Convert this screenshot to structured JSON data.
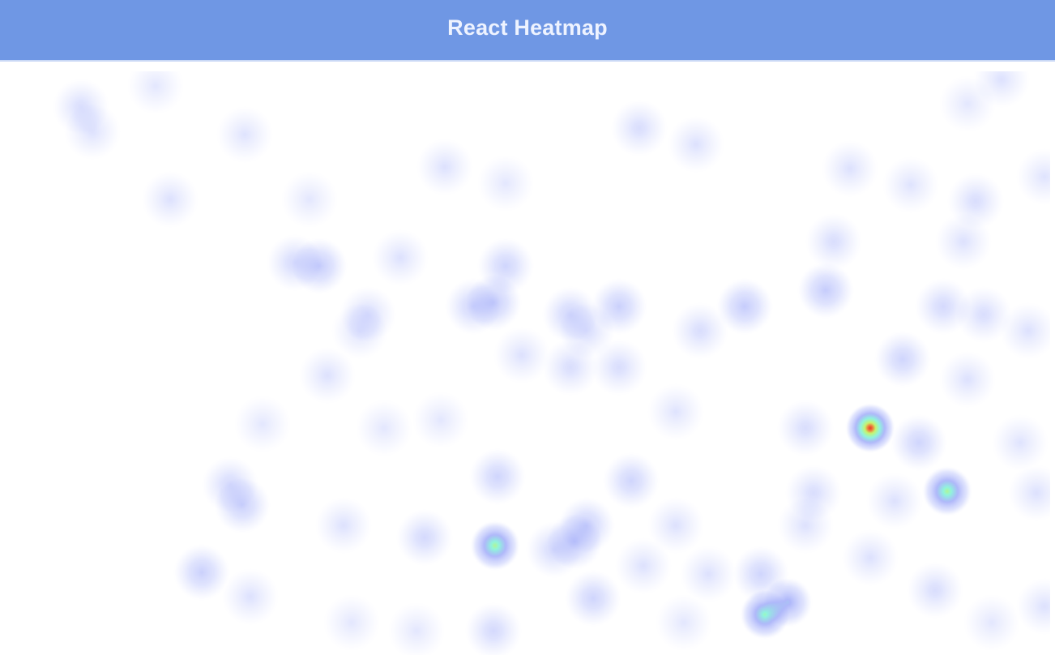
{
  "header": {
    "title": "React Heatmap"
  },
  "heatmap": {
    "gradient": {
      "low": "#8c99f8",
      "mid": "#7ff2d8",
      "high": "#e43a28"
    },
    "background": "#ffffff"
  }
}
